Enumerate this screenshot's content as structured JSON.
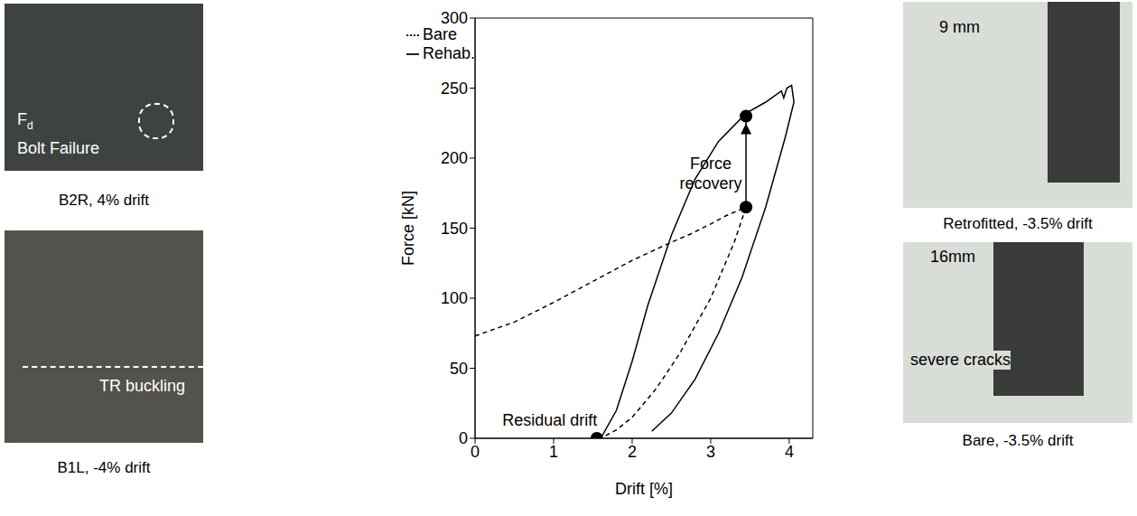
{
  "chart_data": {
    "type": "line",
    "x_label": "Drift [%]",
    "y_label": "Force [kN]",
    "xlim": [
      0,
      4.3
    ],
    "xticks": [
      0,
      1,
      2,
      3,
      4
    ],
    "ylim": [
      0,
      300
    ],
    "yticks": [
      0,
      50,
      100,
      150,
      200,
      250,
      300
    ],
    "legend": "upper left",
    "series": [
      {
        "name": "Bare",
        "color": "#000000",
        "line_style": "dashed",
        "x": [
          0,
          0.5,
          1,
          1.5,
          2,
          2.5,
          2.75,
          3,
          3.2,
          3.45,
          3.3,
          3.0,
          2.6,
          2.3,
          2.0,
          1.8,
          1.6
        ],
        "y": [
          73,
          83,
          97,
          112,
          127,
          140,
          146,
          153,
          159,
          165,
          140,
          100,
          60,
          35,
          15,
          6,
          0
        ]
      },
      {
        "name": "Rehab.",
        "color": "#000000",
        "line_style": "solid",
        "x": [
          1.6,
          1.8,
          2.0,
          2.2,
          2.5,
          2.8,
          3.1,
          3.45,
          3.7,
          3.9,
          3.93,
          3.97,
          4.03,
          4.06,
          3.95,
          3.7,
          3.4,
          3.1,
          2.8,
          2.5,
          2.25
        ],
        "y": [
          0,
          20,
          55,
          95,
          145,
          185,
          212,
          232,
          240,
          248,
          243,
          250,
          252,
          240,
          215,
          165,
          115,
          75,
          42,
          18,
          5
        ]
      }
    ],
    "points": {
      "x": [
        3.45,
        3.45,
        1.55
      ],
      "y": [
        165,
        230,
        0
      ]
    },
    "arrow": {
      "x": 3.45,
      "from": 165,
      "to": 230
    },
    "annotations": [
      {
        "text": "Force recovery",
        "x": 3.0,
        "y": 192
      },
      {
        "text": "Residual drift",
        "x": 0.95,
        "y": 9
      }
    ]
  },
  "photos": [
    {
      "caption": "B2R, 4% drift",
      "labels": [
        {
          "text": "F",
          "subscript": "d"
        },
        {
          "text": "Bolt Failure"
        }
      ]
    },
    {
      "caption": "B1L, -4% drift",
      "labels": [
        {
          "text": "TR buckling"
        }
      ]
    },
    {
      "caption": "Retrofitted, -3.5% drift",
      "labels": [
        {
          "text": "9 mm"
        }
      ]
    },
    {
      "caption": "Bare, -3.5% drift",
      "labels": [
        {
          "text": "16mm"
        },
        {
          "text": "severe cracks"
        }
      ]
    }
  ]
}
